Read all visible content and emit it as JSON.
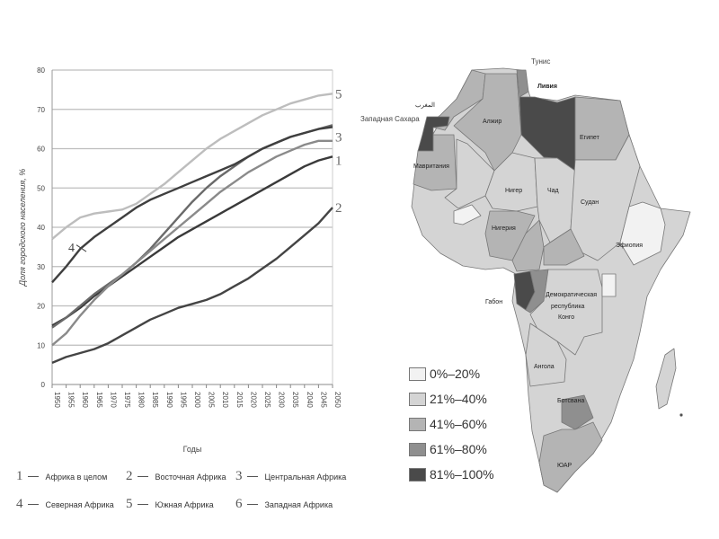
{
  "chart_data": {
    "type": "line",
    "title": "",
    "xlabel": "Годы",
    "ylabel": "Доля городского населения, %",
    "ylim": [
      0,
      80
    ],
    "yticks": [
      0,
      10,
      20,
      30,
      40,
      50,
      60,
      70,
      80
    ],
    "grid": true,
    "x": [
      1950,
      1955,
      1960,
      1965,
      1970,
      1975,
      1980,
      1985,
      1990,
      1995,
      2000,
      2005,
      2010,
      2015,
      2020,
      2025,
      2030,
      2035,
      2040,
      2045,
      2050
    ],
    "series": [
      {
        "id": "1",
        "name": "Африка в целом",
        "color": "#3a3a3a",
        "values": [
          15,
          17,
          19.5,
          22.5,
          25,
          27.5,
          30,
          32.5,
          35,
          37.5,
          39.5,
          41.5,
          43.5,
          45.5,
          47.5,
          49.5,
          51.5,
          53.5,
          55.5,
          57,
          58
        ]
      },
      {
        "id": "2",
        "name": "Восточная Африка",
        "color": "#444444",
        "values": [
          5.5,
          7,
          8,
          9,
          10.5,
          12.5,
          14.5,
          16.5,
          18,
          19.5,
          20.5,
          21.5,
          23,
          25,
          27,
          29.5,
          32,
          35,
          38,
          41,
          45
        ]
      },
      {
        "id": "3",
        "name": "Центральная Африка",
        "color": "#6a6a6a",
        "values": [
          14.5,
          17,
          20,
          23,
          25.5,
          28,
          31,
          34.5,
          38.5,
          42.5,
          46.5,
          50,
          53,
          55.5,
          58,
          60,
          61.5,
          63,
          64,
          65,
          66
        ]
      },
      {
        "id": "4",
        "name": "Северная Африка",
        "color": "#3f3f3f",
        "values": [
          26,
          30,
          34.5,
          37.5,
          40,
          42.5,
          45,
          47,
          48.5,
          50,
          51.5,
          53,
          54.5,
          56,
          58,
          60,
          61.5,
          63,
          64,
          65,
          65.5
        ]
      },
      {
        "id": "5",
        "name": "Южная Африка",
        "color": "#bdbdbd",
        "values": [
          37,
          40,
          42.5,
          43.5,
          44,
          44.5,
          46,
          48.5,
          51,
          54,
          57,
          60,
          62.5,
          64.5,
          66.5,
          68.5,
          70,
          71.5,
          72.5,
          73.5,
          74
        ]
      },
      {
        "id": "6",
        "name": "Западная Африка",
        "color": "#8a8a8a",
        "values": [
          10,
          13,
          17.5,
          21.5,
          25,
          28,
          31,
          34,
          37,
          40,
          43,
          46,
          49,
          51.5,
          54,
          56,
          58,
          59.5,
          61,
          62,
          62
        ]
      }
    ],
    "line_end_labels": [
      "5",
      "3",
      "1",
      "2"
    ],
    "annotation": "4"
  },
  "map": {
    "labels": {
      "tunisia": "Тунис",
      "libya": "Ливия",
      "w_sahara": "Западная Сахара",
      "morocco": "المغرب",
      "algeria": "Алжир",
      "egypt": "Египет",
      "mauritania": "Мавритания",
      "niger": "Нигер",
      "chad": "Чад",
      "sudan": "Судан",
      "nigeria": "Нигерия",
      "ethiopia": "Эфиопия",
      "gabon": "Габон",
      "drc_1": "Демократическая",
      "drc_2": "республика",
      "drc_3": "Конго",
      "angola": "Ангола",
      "botswana": "Ботсвана",
      "rsa": "ЮАР"
    },
    "legend": [
      {
        "label": "0%–20%",
        "color": "#f2f2f2"
      },
      {
        "label": "21%–40%",
        "color": "#d4d4d4"
      },
      {
        "label": "41%–60%",
        "color": "#b4b4b4"
      },
      {
        "label": "61%–80%",
        "color": "#8f8f8f"
      },
      {
        "label": "81%–100%",
        "color": "#4a4a4a"
      }
    ]
  }
}
